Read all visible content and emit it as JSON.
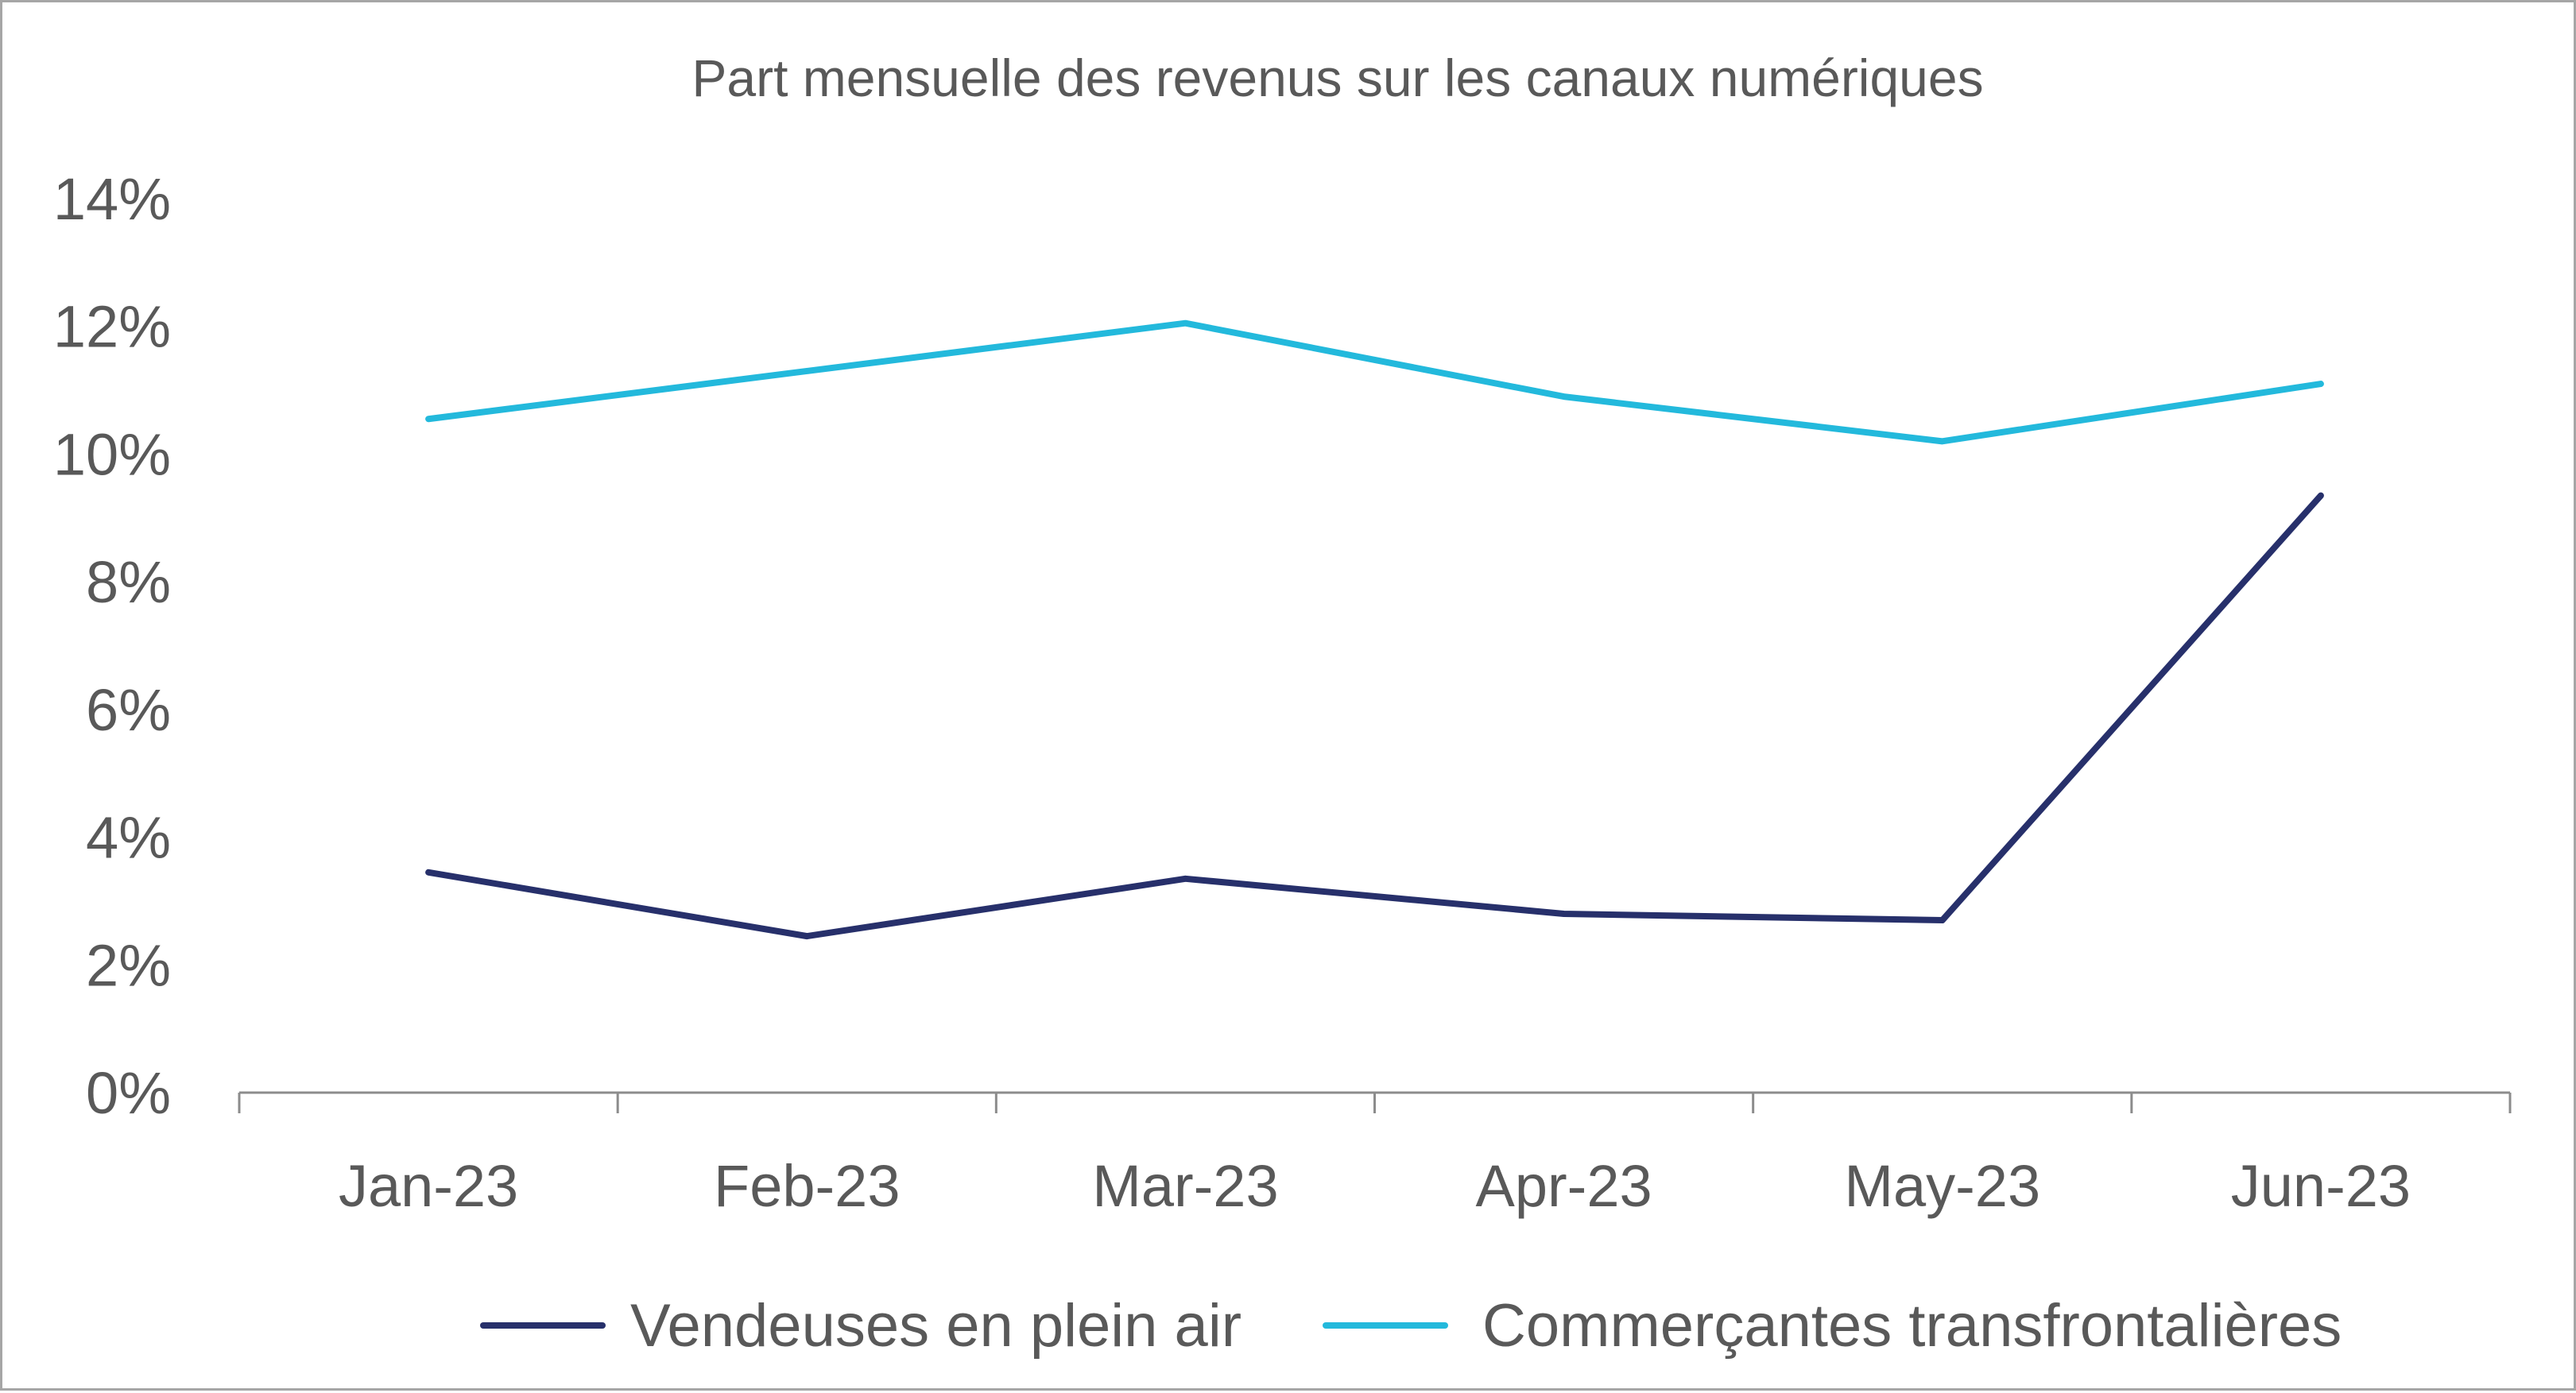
{
  "chart_data": {
    "type": "line",
    "title": "Part mensuelle des revenus sur les canaux numériques",
    "xlabel": "",
    "ylabel": "",
    "categories": [
      "Jan-23",
      "Feb-23",
      "Mar-23",
      "Apr-23",
      "May-23",
      "Jun-23"
    ],
    "y_ticks": [
      "0%",
      "2%",
      "4%",
      "6%",
      "8%",
      "10%",
      "12%",
      "14%"
    ],
    "ylim": [
      0,
      14
    ],
    "grid": false,
    "legend_position": "bottom",
    "series": [
      {
        "name": "Vendeuses en plein air",
        "color": "#27306b",
        "values": [
          3.45,
          2.45,
          3.35,
          2.8,
          2.7,
          9.35
        ]
      },
      {
        "name": "Commerçantes transfrontalières",
        "color": "#23b9dc",
        "values": [
          10.55,
          11.3,
          12.05,
          10.9,
          10.2,
          11.1
        ]
      }
    ]
  }
}
